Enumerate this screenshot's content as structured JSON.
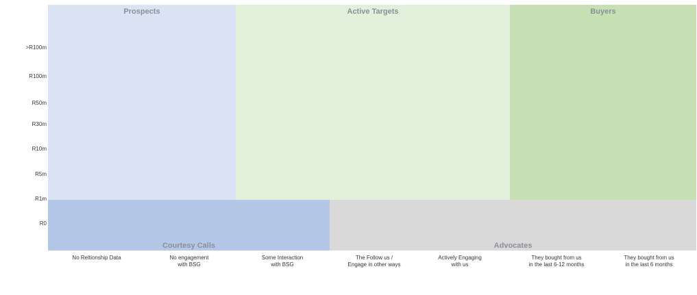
{
  "zones": {
    "prospects": {
      "title": "Prospects",
      "color": "#dae3f3"
    },
    "active_targets": {
      "title": "Active Targets",
      "color": "#e2efda"
    },
    "buyers": {
      "title": "Buyers",
      "color": "#c6e0b4"
    },
    "courtesy_calls": {
      "title": "Courtesy Calls",
      "color": "#b4c7e7"
    },
    "advocates": {
      "title": "Advocates",
      "color": "#d9d9d9"
    }
  },
  "y_axis": {
    "labels": [
      ">R100m",
      "R100m",
      "R50m",
      "R30m",
      "R10m",
      "R5m",
      "R1m",
      "R0"
    ]
  },
  "x_axis": {
    "labels": [
      {
        "line1": "No Reltionship Data",
        "line2": ""
      },
      {
        "line1": "No engagement",
        "line2": "with BSG"
      },
      {
        "line1": "Some Interaction",
        "line2": "with BSG"
      },
      {
        "line1": "The Follow us /",
        "line2": "Engage in other ways"
      },
      {
        "line1": "Actively Engaging",
        "line2": "with us"
      },
      {
        "line1": "They bought from us",
        "line2": "in the last 6-12 months"
      },
      {
        "line1": "They bought from us",
        "line2": "in the last 6 months"
      }
    ]
  }
}
